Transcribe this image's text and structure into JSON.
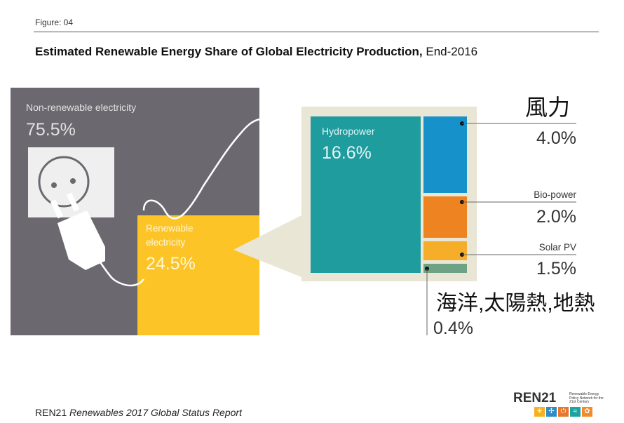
{
  "figure_label": "Figure: 04",
  "title_bold": "Estimated Renewable Energy Share of Global Electricity Production,",
  "title_normal": " End-2016",
  "footer": {
    "org": "REN21",
    "report": "Renewables 2017 Global Status Report"
  },
  "logo": {
    "text": "REN21",
    "tagline": "Renewable Energy Policy Network for the 21st Century",
    "icons": [
      "sun-icon",
      "wind-icon",
      "power-icon",
      "wave-icon",
      "leaf-icon"
    ]
  },
  "colors": {
    "non_renewable": "#6b6870",
    "renewable": "#fcc427",
    "hydro": "#1e9c9e",
    "wind": "#1791c9",
    "bio": "#ee8321",
    "solar": "#f6ad2a",
    "ocean": "#6da384",
    "panel_bg": "#e9e6d6"
  },
  "chart_data": {
    "type": "treemap",
    "title": "Estimated Renewable Energy Share of Global Electricity Production, End-2016",
    "unit": "%",
    "main": [
      {
        "label": "Non-renewable electricity",
        "value": 75.5,
        "value_label": "75.5%"
      },
      {
        "label": "Renewable electricity",
        "value": 24.5,
        "value_label": "24.5%"
      }
    ],
    "renewable_breakdown": [
      {
        "label": "Hydropower",
        "value": 16.6,
        "value_label": "16.6%"
      },
      {
        "label": "風力",
        "value": 4.0,
        "value_label": "4.0%"
      },
      {
        "label": "Bio-power",
        "value": 2.0,
        "value_label": "2.0%"
      },
      {
        "label": "Solar PV",
        "value": 1.5,
        "value_label": "1.5%"
      },
      {
        "label": "海洋,太陽熱,地熱",
        "value": 0.4,
        "value_label": "0.4%"
      }
    ]
  }
}
